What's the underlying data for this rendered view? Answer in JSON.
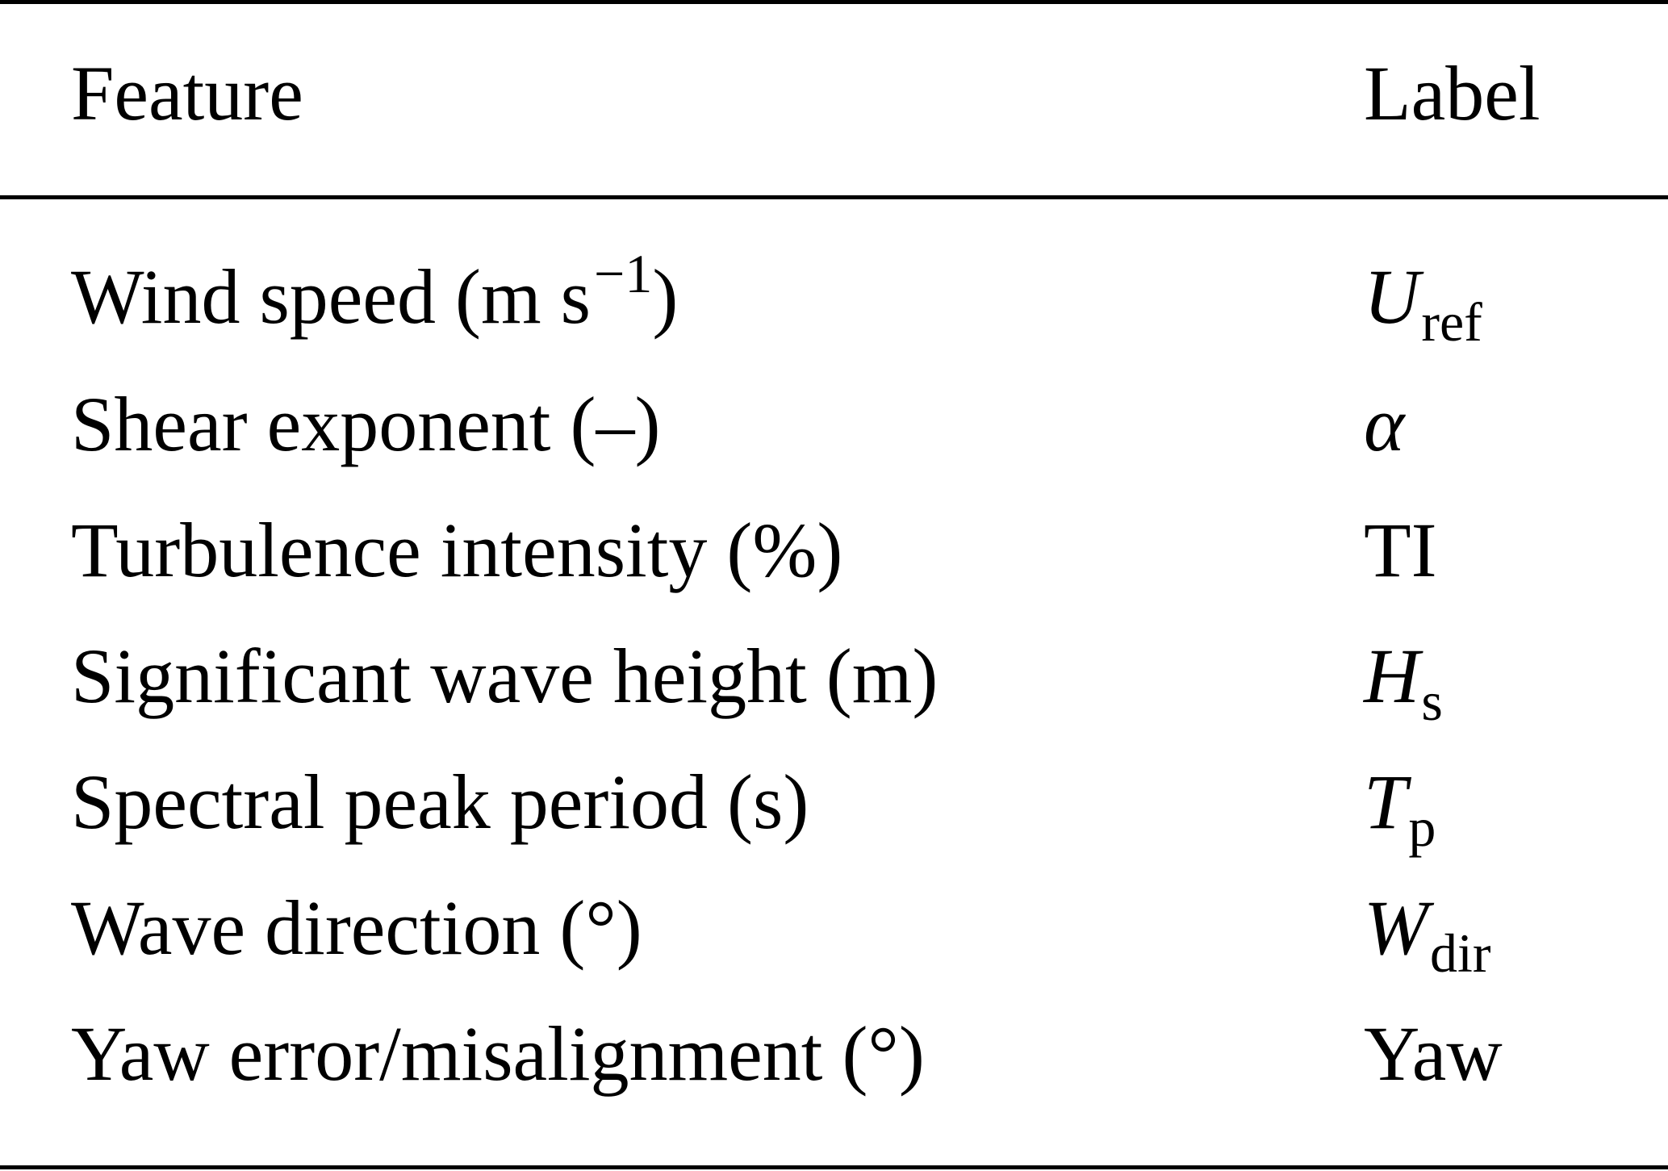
{
  "header": {
    "feature": "Feature",
    "label": "Label"
  },
  "rows": [
    {
      "feature_main": "Wind speed (m s",
      "feature_sup": "−1",
      "feature_tail": ")",
      "label_main": "U",
      "label_sub": "ref"
    },
    {
      "feature": "Shear exponent (–)",
      "label_main": "α",
      "label_sub": ""
    },
    {
      "feature": "Turbulence intensity (%)",
      "label_main": "TI",
      "label_sub": ""
    },
    {
      "feature": "Significant wave height (m)",
      "label_main": "H",
      "label_sub": "s"
    },
    {
      "feature": "Spectral peak period (s)",
      "label_main": "T",
      "label_sub": "p"
    },
    {
      "feature": "Wave direction (°)",
      "label_main": "W",
      "label_sub": "dir"
    },
    {
      "feature": "Yaw error/misalignment (°)",
      "label_main": "Yaw",
      "label_sub": ""
    }
  ]
}
